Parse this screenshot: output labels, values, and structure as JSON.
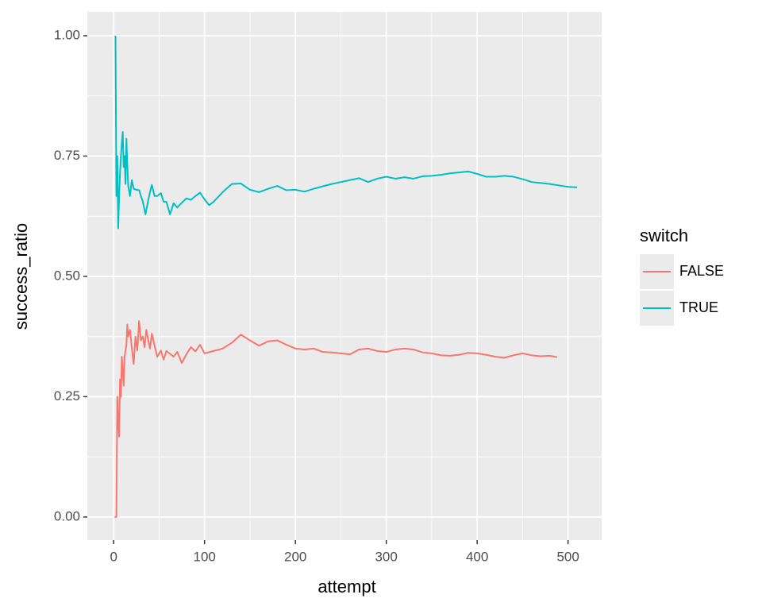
{
  "chart_data": {
    "type": "line",
    "x_label": "attempt",
    "y_label": "success_ratio",
    "legend_title": "switch",
    "legend_position": "right",
    "xlim": [
      -29,
      537
    ],
    "ylim": [
      -0.048,
      1.0495
    ],
    "xticks": [
      0,
      100,
      200,
      300,
      400,
      500
    ],
    "x_minor_ticks": [
      50,
      150,
      250,
      350,
      450
    ],
    "yticks": [
      {
        "value": 0,
        "label": "0.00"
      },
      {
        "value": 0.25,
        "label": "0.25"
      },
      {
        "value": 0.5,
        "label": "0.50"
      },
      {
        "value": 0.75,
        "label": "0.75"
      },
      {
        "value": 1,
        "label": "1.00"
      }
    ],
    "y_minor_ticks": [
      0.125,
      0.375,
      0.625,
      0.875
    ],
    "grid": true,
    "series": [
      {
        "name": "FALSE",
        "color": "#f8766d",
        "x": [
          1,
          2,
          3,
          4,
          5,
          6,
          7,
          8,
          9,
          10,
          11,
          12,
          14,
          15,
          16,
          18,
          20,
          22,
          24,
          26,
          28,
          30,
          32,
          34,
          36,
          38,
          40,
          42,
          45,
          48,
          52,
          55,
          58,
          62,
          66,
          70,
          75,
          80,
          85,
          90,
          95,
          100,
          110,
          120,
          130,
          140,
          150,
          160,
          170,
          180,
          190,
          200,
          210,
          220,
          230,
          240,
          250,
          260,
          270,
          280,
          290,
          300,
          310,
          320,
          330,
          340,
          350,
          360,
          370,
          380,
          390,
          400,
          410,
          420,
          430,
          440,
          450,
          460,
          470,
          480,
          488
        ],
        "values": [
          0,
          0,
          0,
          0.25,
          0.2,
          0.167,
          0.286,
          0.25,
          0.333,
          0.3,
          0.273,
          0.333,
          0.357,
          0.4,
          0.375,
          0.389,
          0.35,
          0.318,
          0.375,
          0.346,
          0.407,
          0.367,
          0.375,
          0.353,
          0.389,
          0.368,
          0.35,
          0.381,
          0.356,
          0.333,
          0.346,
          0.327,
          0.345,
          0.339,
          0.333,
          0.343,
          0.32,
          0.338,
          0.353,
          0.344,
          0.358,
          0.34,
          0.345,
          0.35,
          0.362,
          0.379,
          0.367,
          0.356,
          0.365,
          0.367,
          0.358,
          0.35,
          0.348,
          0.35,
          0.343,
          0.342,
          0.34,
          0.338,
          0.348,
          0.35,
          0.345,
          0.343,
          0.348,
          0.35,
          0.348,
          0.342,
          0.34,
          0.336,
          0.335,
          0.337,
          0.341,
          0.34,
          0.337,
          0.333,
          0.331,
          0.336,
          0.34,
          0.336,
          0.334,
          0.335,
          0.332
        ]
      },
      {
        "name": "TRUE",
        "color": "#00bfc4",
        "x": [
          2,
          3,
          4,
          5,
          6,
          7,
          8,
          9,
          10,
          11,
          12,
          13,
          14,
          15,
          16,
          18,
          20,
          22,
          25,
          28,
          30,
          32,
          35,
          38,
          40,
          42,
          45,
          48,
          52,
          55,
          58,
          62,
          66,
          70,
          75,
          80,
          85,
          90,
          95,
          100,
          105,
          110,
          120,
          130,
          140,
          150,
          160,
          170,
          180,
          190,
          200,
          210,
          220,
          230,
          240,
          250,
          260,
          270,
          280,
          290,
          300,
          310,
          320,
          330,
          340,
          350,
          360,
          370,
          380,
          390,
          400,
          410,
          420,
          430,
          440,
          450,
          460,
          470,
          480,
          490,
          500,
          510
        ],
        "values": [
          1,
          0.667,
          0.75,
          0.6,
          0.667,
          0.714,
          0.75,
          0.778,
          0.8,
          0.727,
          0.75,
          0.692,
          0.786,
          0.733,
          0.688,
          0.667,
          0.7,
          0.682,
          0.68,
          0.679,
          0.667,
          0.656,
          0.629,
          0.658,
          0.675,
          0.69,
          0.667,
          0.667,
          0.673,
          0.655,
          0.655,
          0.629,
          0.652,
          0.643,
          0.653,
          0.662,
          0.659,
          0.667,
          0.674,
          0.66,
          0.648,
          0.655,
          0.675,
          0.692,
          0.693,
          0.68,
          0.675,
          0.682,
          0.688,
          0.679,
          0.68,
          0.676,
          0.682,
          0.687,
          0.692,
          0.696,
          0.7,
          0.704,
          0.696,
          0.703,
          0.707,
          0.703,
          0.706,
          0.703,
          0.708,
          0.709,
          0.711,
          0.714,
          0.716,
          0.718,
          0.713,
          0.707,
          0.707,
          0.709,
          0.707,
          0.702,
          0.696,
          0.694,
          0.692,
          0.689,
          0.686,
          0.685
        ]
      }
    ]
  }
}
